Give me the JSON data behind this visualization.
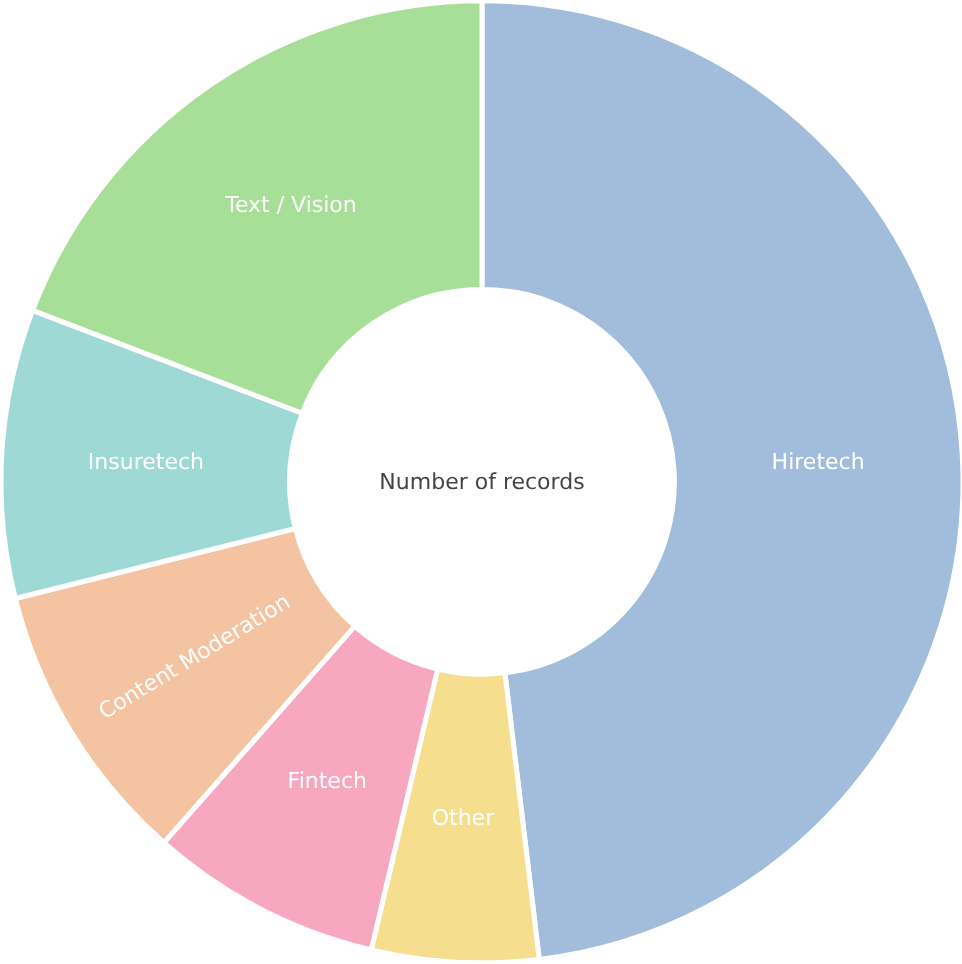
{
  "chart_data": {
    "type": "donut",
    "title": "Number of records",
    "categories": [
      "Hiretech",
      "Other",
      "Fintech",
      "Content Moderation",
      "Insuretech",
      "Text / Vision"
    ],
    "values": [
      48.1,
      5.6,
      7.8,
      9.6,
      9.7,
      19.2
    ],
    "colors": [
      "#a2bcdb",
      "#f5de8e",
      "#f7a8c0",
      "#f4c3a2",
      "#9ed9d6",
      "#a8df98"
    ]
  }
}
